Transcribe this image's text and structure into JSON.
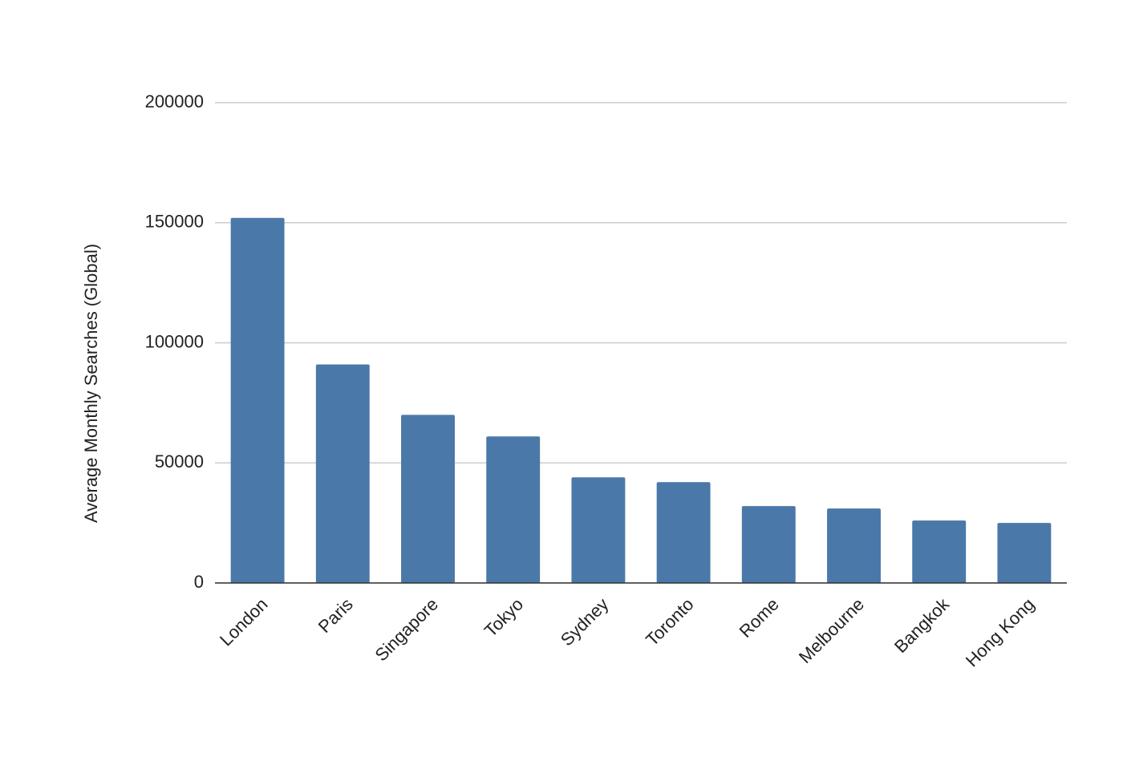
{
  "chart_data": {
    "type": "bar",
    "y_label": "Average Monthly Searches (Global)",
    "categories": [
      "London",
      "Paris",
      "Singapore",
      "Tokyo",
      "Sydney",
      "Toronto",
      "Rome",
      "Melbourne",
      "Bangkok",
      "Hong Kong"
    ],
    "values": [
      152000,
      91000,
      70000,
      61000,
      44000,
      42000,
      32000,
      31000,
      26000,
      25000
    ],
    "color": "#4a78a9",
    "ylim": [
      0,
      200000
    ],
    "yticks": [
      0,
      50000,
      100000,
      150000,
      200000
    ],
    "grid": true
  }
}
